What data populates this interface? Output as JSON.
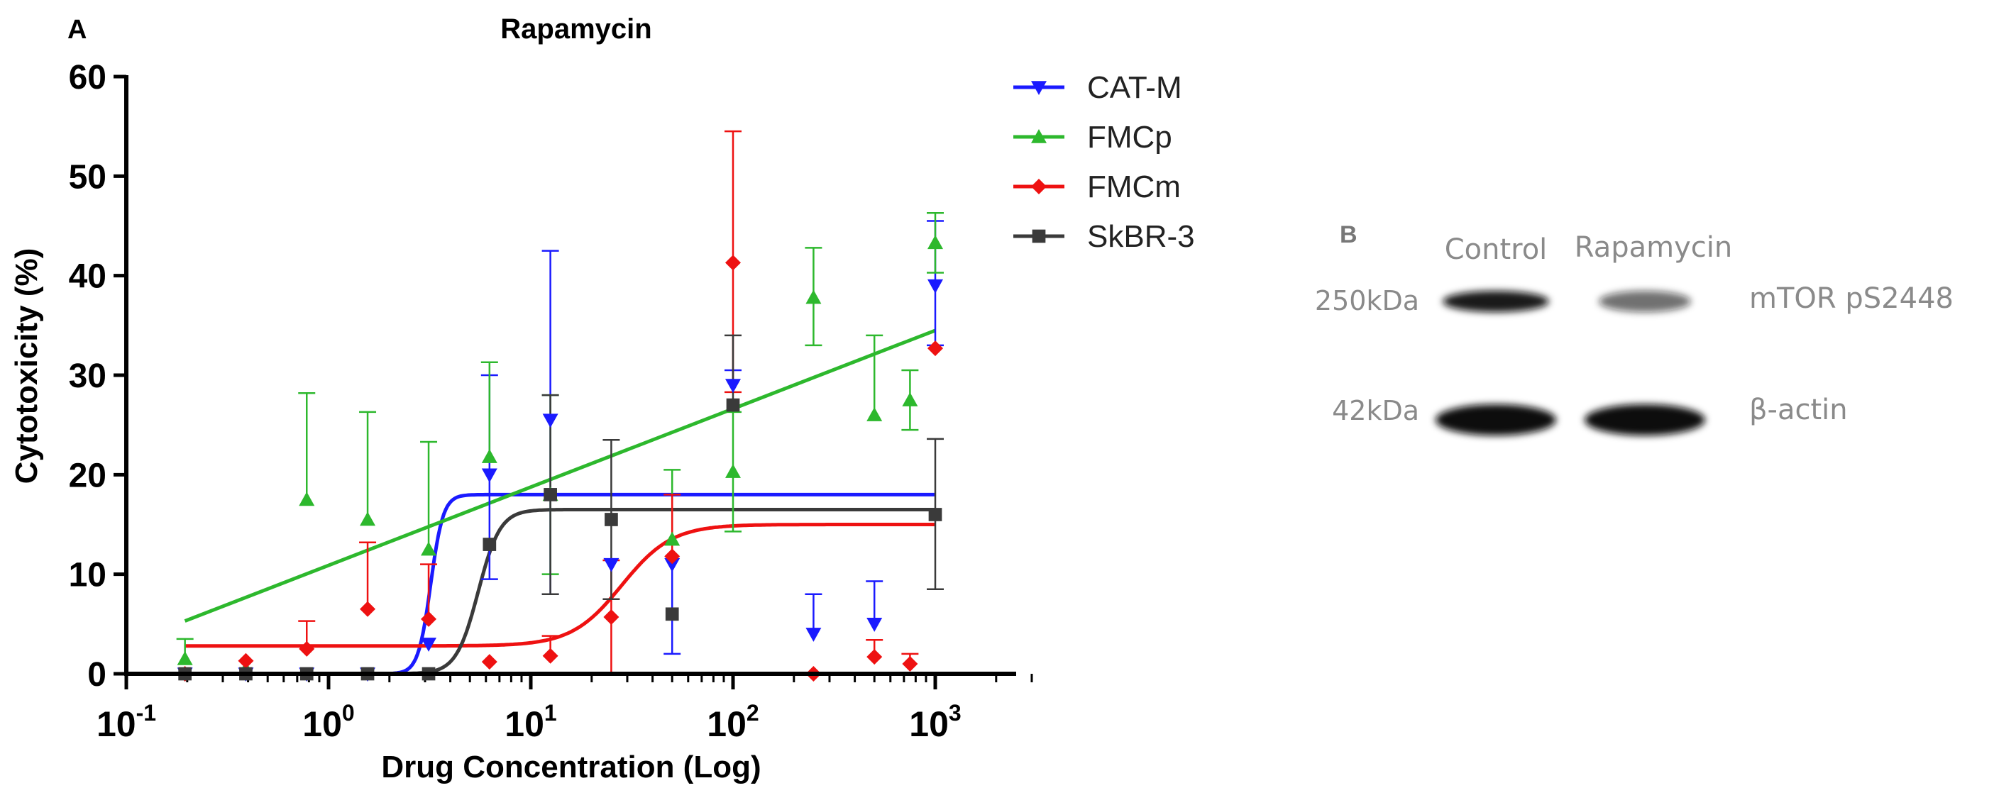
{
  "panel_a": {
    "letter": "A",
    "chart_data": {
      "type": "scatter",
      "title": "Rapamycin",
      "xlabel": "Drug Concentration (Log)",
      "ylabel": "Cytotoxicity (%)",
      "xscale": "log",
      "xlim_log10": [
        -1,
        3.5
      ],
      "ylim": [
        0,
        60
      ],
      "x_ticks": [
        {
          "base": "10",
          "exp": "-1"
        },
        {
          "base": "10",
          "exp": "0"
        },
        {
          "base": "10",
          "exp": "1"
        },
        {
          "base": "10",
          "exp": "2"
        },
        {
          "base": "10",
          "exp": "3"
        }
      ],
      "y_ticks": [
        "0",
        "10",
        "20",
        "30",
        "40",
        "50",
        "60"
      ],
      "legend_position": "top-right, outside plot",
      "series": [
        {
          "name": "CAT-M",
          "color": "#1a1aff",
          "marker": "triangle-down",
          "x": [
            0.195,
            0.39,
            0.78,
            1.56,
            3.125,
            6.25,
            12.5,
            25,
            50,
            100,
            250,
            500,
            1000
          ],
          "y": [
            0,
            0,
            0,
            0,
            3,
            20,
            25.5,
            11,
            11,
            29,
            4,
            5,
            39
          ],
          "err_up": [
            0,
            0,
            0,
            0,
            0,
            10,
            17,
            0,
            0,
            1.5,
            4,
            4.3,
            6.5
          ],
          "err_down": [
            0,
            0,
            0,
            0,
            0,
            10.5,
            17.5,
            0,
            9,
            0,
            0,
            0,
            6
          ],
          "fit": {
            "model": "sigmoid",
            "bottom": 0,
            "top": 18,
            "log_ec50": 0.505,
            "hill": 14
          }
        },
        {
          "name": "FMCp",
          "color": "#2db82d",
          "marker": "triangle-up",
          "x": [
            0.195,
            0.39,
            0.78,
            1.56,
            3.125,
            6.25,
            12.5,
            50,
            100,
            250,
            500,
            750,
            1000
          ],
          "y": [
            1.5,
            0.5,
            17.5,
            15.5,
            12.5,
            21.8,
            18,
            13.5,
            20.3,
            37.8,
            26,
            27.5,
            43.3
          ],
          "err_up": [
            2,
            0,
            10.7,
            10.8,
            10.8,
            9.5,
            10,
            7,
            6,
            5,
            8,
            3,
            3
          ],
          "err_down": [
            0,
            0,
            0,
            0,
            0,
            0,
            8,
            0,
            6,
            4.8,
            0,
            3,
            3
          ],
          "fit": {
            "model": "line_loglog",
            "points": [
              [
                -0.71,
                5.3
              ],
              [
                3.0,
                34.5
              ]
            ]
          }
        },
        {
          "name": "FMCm",
          "color": "#ee1111",
          "marker": "diamond",
          "x": [
            0.195,
            0.39,
            0.78,
            1.56,
            3.125,
            6.25,
            12.5,
            25,
            50,
            100,
            250,
            500,
            750,
            1000
          ],
          "y": [
            0,
            1.3,
            2.5,
            6.5,
            5.5,
            1.2,
            1.8,
            5.7,
            11.8,
            41.3,
            0,
            1.7,
            1.0,
            32.7
          ],
          "err_up": [
            0,
            0,
            2.8,
            6.7,
            5.5,
            0,
            2,
            5.7,
            6.2,
            13.2,
            0,
            1.7,
            1,
            0
          ],
          "err_down": [
            0,
            0,
            0,
            0,
            0,
            0,
            0,
            5.7,
            0,
            13,
            0,
            0,
            0,
            0
          ],
          "fit": {
            "model": "sigmoid",
            "bottom": 2.8,
            "top": 15,
            "log_ec50": 1.45,
            "hill": 3.5
          }
        },
        {
          "name": "SkBR-3",
          "color": "#3a3a3a",
          "marker": "square",
          "x": [
            0.195,
            0.39,
            0.78,
            1.56,
            3.125,
            6.25,
            12.5,
            25,
            50,
            100,
            1000
          ],
          "y": [
            0,
            0,
            0,
            0,
            0,
            13,
            18,
            15.5,
            6,
            27,
            16
          ],
          "err_up": [
            0,
            0,
            0,
            0,
            0,
            0,
            10,
            8,
            0,
            7,
            7.6
          ],
          "err_down": [
            0,
            0,
            0,
            0,
            0,
            0,
            10,
            8,
            0,
            0,
            7.5
          ],
          "fit": {
            "model": "sigmoid",
            "bottom": 0,
            "top": 16.5,
            "log_ec50": 0.74,
            "hill": 8
          }
        }
      ]
    }
  },
  "panel_b": {
    "letter": "B",
    "columns": [
      "Control",
      "Rapamycin"
    ],
    "rows": [
      {
        "marker": "250kDa",
        "protein": "mTOR pS2448",
        "intensity": [
          0.95,
          0.6
        ]
      },
      {
        "marker": "42kDa",
        "protein": "β-actin",
        "intensity": [
          1.0,
          1.0
        ]
      }
    ]
  }
}
